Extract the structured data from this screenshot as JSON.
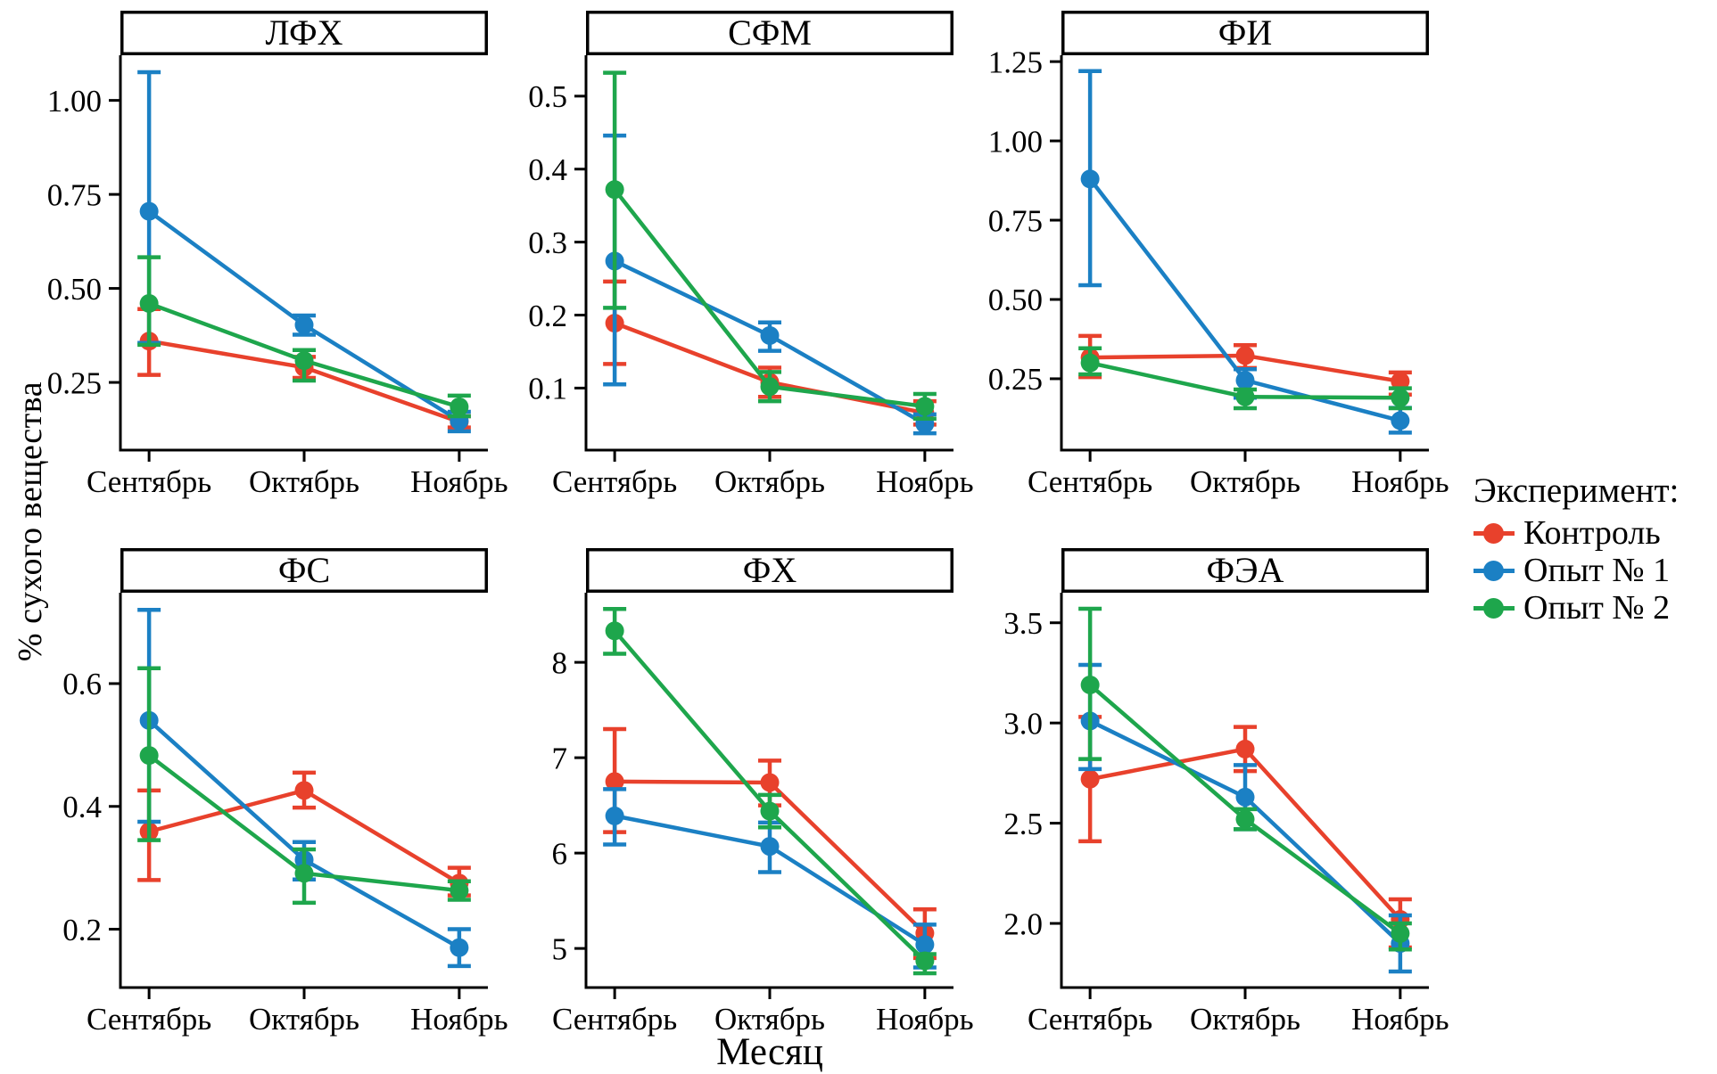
{
  "figure": {
    "y_axis_label": "% сухого вещества",
    "x_axis_label": "Месяц",
    "categories": [
      "Сентябрь",
      "Октябрь",
      "Ноябрь"
    ],
    "legend": {
      "title": "Эксперимент:",
      "items": [
        {
          "label": "Контроль",
          "color": "#E8412C"
        },
        {
          "label": "Опыт № 1",
          "color": "#1B80C4"
        },
        {
          "label": "Опыт № 2",
          "color": "#1EA64C"
        }
      ]
    },
    "colors": {
      "control": "#E8412C",
      "exp1": "#1B80C4",
      "exp2": "#1EA64C",
      "axis": "#000000"
    }
  },
  "chart_data": [
    {
      "type": "line",
      "title": "ЛФХ",
      "categories": [
        "Сентябрь",
        "Октябрь",
        "Ноябрь"
      ],
      "ylim": [
        0.07,
        1.12
      ],
      "yticks": [
        0.25,
        0.5,
        0.75,
        1.0
      ],
      "ytick_labels": [
        "0.25",
        "0.50",
        "0.75",
        "1.00"
      ],
      "series": [
        {
          "name": "Контроль",
          "color": "#E8412C",
          "values": [
            0.36,
            0.29,
            0.145
          ],
          "err_lo": [
            0.27,
            0.262,
            0.13
          ],
          "err_hi": [
            0.445,
            0.318,
            0.16
          ]
        },
        {
          "name": "Опыт № 1",
          "color": "#1B80C4",
          "values": [
            0.705,
            0.403,
            0.148
          ],
          "err_lo": [
            0.355,
            0.377,
            0.12
          ],
          "err_hi": [
            1.075,
            0.428,
            0.172
          ]
        },
        {
          "name": "Опыт № 2",
          "color": "#1EA64C",
          "values": [
            0.46,
            0.308,
            0.185
          ],
          "err_lo": [
            0.35,
            0.255,
            0.16
          ],
          "err_hi": [
            0.583,
            0.336,
            0.215
          ]
        }
      ]
    },
    {
      "type": "line",
      "title": "СФМ",
      "categories": [
        "Сентябрь",
        "Октябрь",
        "Ноябрь"
      ],
      "ylim": [
        0.015,
        0.556
      ],
      "yticks": [
        0.1,
        0.2,
        0.3,
        0.4,
        0.5
      ],
      "ytick_labels": [
        "0.1",
        "0.2",
        "0.3",
        "0.4",
        "0.5"
      ],
      "series": [
        {
          "name": "Контроль",
          "color": "#E8412C",
          "values": [
            0.189,
            0.108,
            0.066
          ],
          "err_lo": [
            0.133,
            0.088,
            0.05
          ],
          "err_hi": [
            0.246,
            0.128,
            0.082
          ]
        },
        {
          "name": "Опыт № 1",
          "color": "#1B80C4",
          "values": [
            0.274,
            0.172,
            0.051
          ],
          "err_lo": [
            0.105,
            0.151,
            0.038
          ],
          "err_hi": [
            0.446,
            0.19,
            0.064
          ]
        },
        {
          "name": "Опыт № 2",
          "color": "#1EA64C",
          "values": [
            0.372,
            0.102,
            0.075
          ],
          "err_lo": [
            0.21,
            0.082,
            0.058
          ],
          "err_hi": [
            0.532,
            0.122,
            0.092
          ]
        }
      ]
    },
    {
      "type": "line",
      "title": "ФИ",
      "categories": [
        "Сентябрь",
        "Октябрь",
        "Ноябрь"
      ],
      "ylim": [
        0.025,
        1.27
      ],
      "yticks": [
        0.25,
        0.5,
        0.75,
        1.0,
        1.25
      ],
      "ytick_labels": [
        "0.25",
        "0.50",
        "0.75",
        "1.00",
        "1.25"
      ],
      "series": [
        {
          "name": "Контроль",
          "color": "#E8412C",
          "values": [
            0.317,
            0.323,
            0.242
          ],
          "err_lo": [
            0.255,
            0.284,
            0.2
          ],
          "err_hi": [
            0.385,
            0.356,
            0.27
          ]
        },
        {
          "name": "Опыт № 1",
          "color": "#1B80C4",
          "values": [
            0.88,
            0.245,
            0.118
          ],
          "err_lo": [
            0.545,
            0.19,
            0.08
          ],
          "err_hi": [
            1.22,
            0.28,
            0.158
          ]
        },
        {
          "name": "Опыт № 2",
          "color": "#1EA64C",
          "values": [
            0.3,
            0.193,
            0.19
          ],
          "err_lo": [
            0.264,
            0.157,
            0.157
          ],
          "err_hi": [
            0.346,
            0.216,
            0.22
          ]
        }
      ]
    },
    {
      "type": "line",
      "title": "ФС",
      "categories": [
        "Сентябрь",
        "Октябрь",
        "Ноябрь"
      ],
      "ylim": [
        0.105,
        0.748
      ],
      "yticks": [
        0.2,
        0.4,
        0.6
      ],
      "ytick_labels": [
        "0.2",
        "0.4",
        "0.6"
      ],
      "series": [
        {
          "name": "Контроль",
          "color": "#E8412C",
          "values": [
            0.359,
            0.426,
            0.275
          ],
          "err_lo": [
            0.28,
            0.398,
            0.255
          ],
          "err_hi": [
            0.426,
            0.455,
            0.3
          ]
        },
        {
          "name": "Опыт № 1",
          "color": "#1B80C4",
          "values": [
            0.54,
            0.313,
            0.17
          ],
          "err_lo": [
            0.375,
            0.281,
            0.14
          ],
          "err_hi": [
            0.72,
            0.342,
            0.2
          ]
        },
        {
          "name": "Опыт № 2",
          "color": "#1EA64C",
          "values": [
            0.483,
            0.291,
            0.263
          ],
          "err_lo": [
            0.345,
            0.243,
            0.248
          ],
          "err_hi": [
            0.625,
            0.33,
            0.278
          ]
        }
      ]
    },
    {
      "type": "line",
      "title": "ФХ",
      "categories": [
        "Сентябрь",
        "Октябрь",
        "Ноябрь"
      ],
      "ylim": [
        4.59,
        8.73
      ],
      "yticks": [
        5,
        6,
        7,
        8
      ],
      "ytick_labels": [
        "5",
        "6",
        "7",
        "8"
      ],
      "series": [
        {
          "name": "Контроль",
          "color": "#E8412C",
          "values": [
            6.75,
            6.74,
            5.16
          ],
          "err_lo": [
            6.22,
            6.5,
            4.9
          ],
          "err_hi": [
            7.3,
            6.97,
            5.41
          ]
        },
        {
          "name": "Опыт № 1",
          "color": "#1B80C4",
          "values": [
            6.39,
            6.07,
            5.04
          ],
          "err_lo": [
            6.09,
            5.8,
            4.8
          ],
          "err_hi": [
            6.67,
            6.32,
            5.25
          ]
        },
        {
          "name": "Опыт № 2",
          "color": "#1EA64C",
          "values": [
            8.33,
            6.44,
            4.87
          ],
          "err_lo": [
            8.09,
            6.27,
            4.74
          ],
          "err_hi": [
            8.56,
            6.61,
            4.94
          ]
        }
      ]
    },
    {
      "type": "line",
      "title": "ФЭА",
      "categories": [
        "Сентябрь",
        "Октябрь",
        "Ноябрь"
      ],
      "ylim": [
        1.68,
        3.65
      ],
      "yticks": [
        2.0,
        2.5,
        3.0,
        3.5
      ],
      "ytick_labels": [
        "2.0",
        "2.5",
        "3.0",
        "3.5"
      ],
      "series": [
        {
          "name": "Контроль",
          "color": "#E8412C",
          "values": [
            2.72,
            2.87,
            2.02
          ],
          "err_lo": [
            2.41,
            2.76,
            1.88
          ],
          "err_hi": [
            3.03,
            2.98,
            2.12
          ]
        },
        {
          "name": "Опыт № 1",
          "color": "#1B80C4",
          "values": [
            3.01,
            2.63,
            1.9
          ],
          "err_lo": [
            2.77,
            2.47,
            1.76
          ],
          "err_hi": [
            3.29,
            2.79,
            2.04
          ]
        },
        {
          "name": "Опыт № 2",
          "color": "#1EA64C",
          "values": [
            3.19,
            2.52,
            1.95
          ],
          "err_lo": [
            2.82,
            2.47,
            1.87
          ],
          "err_hi": [
            3.57,
            2.57,
            2.0
          ]
        }
      ]
    }
  ]
}
